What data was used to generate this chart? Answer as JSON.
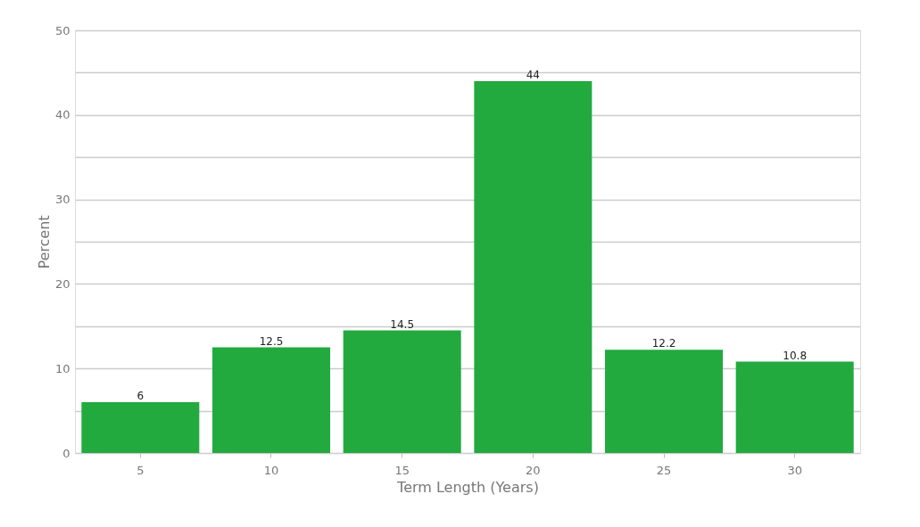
{
  "chart_data": {
    "type": "bar",
    "xlabel": "Term Length (Years)",
    "ylabel": "Percent",
    "categories": [
      "5",
      "10",
      "15",
      "20",
      "25",
      "30"
    ],
    "values": [
      6,
      12.5,
      14.5,
      44,
      12.2,
      10.8
    ],
    "color": "#22aa3f",
    "ylim": [
      0,
      50
    ],
    "yticks": [
      0,
      {
        "value": 5,
        "label": null
      },
      10,
      {
        "value": 15,
        "label": null
      },
      20,
      {
        "value": 25,
        "label": null
      },
      30,
      {
        "value": 35,
        "label": null
      },
      40,
      {
        "value": 45,
        "label": null
      },
      50
    ],
    "grid": "y",
    "data_labels": true
  }
}
